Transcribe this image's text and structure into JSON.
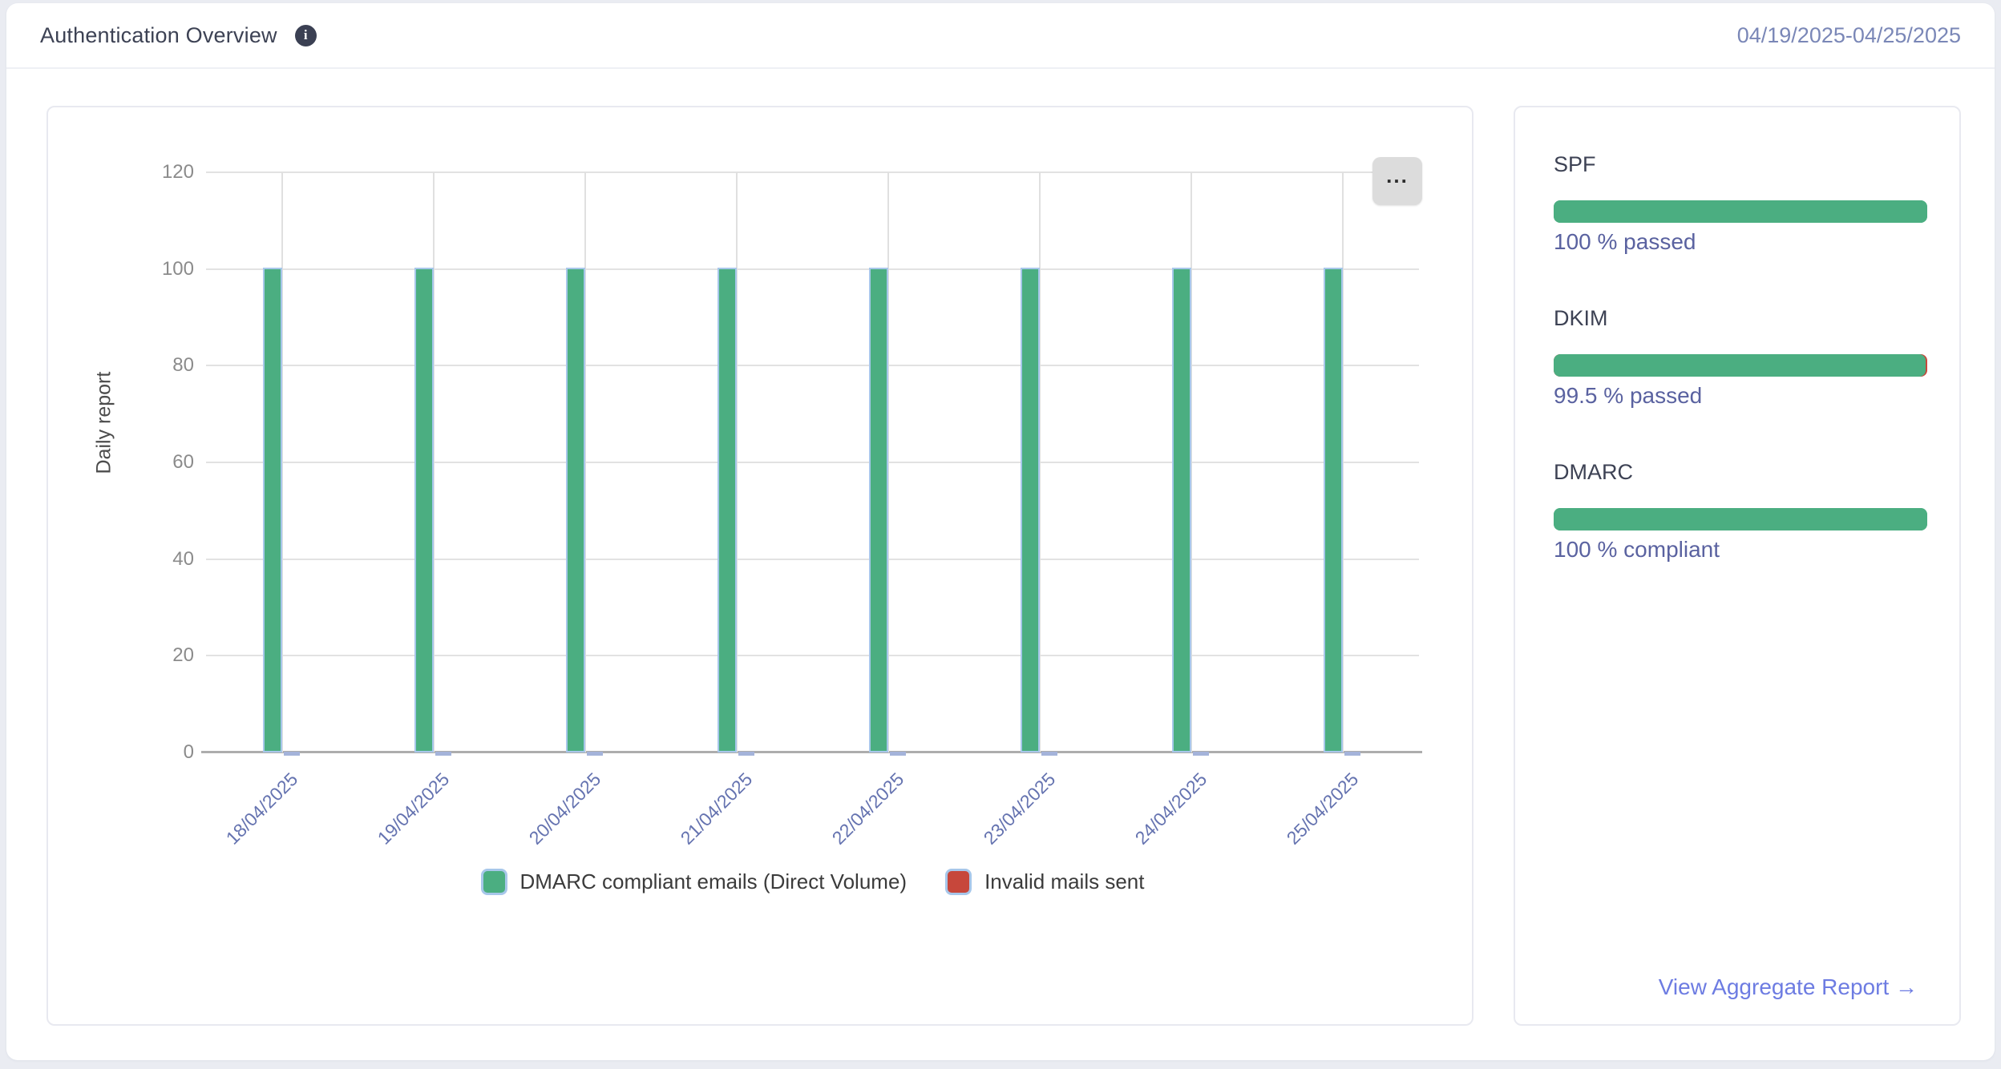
{
  "header": {
    "title": "Authentication Overview",
    "info_icon": "i",
    "date_range": "04/19/2025-04/25/2025"
  },
  "chart_card": {
    "menu_button_label": "..."
  },
  "chart_data": {
    "type": "bar",
    "title": "",
    "xlabel": "",
    "ylabel": "Daily report",
    "ylim": [
      0,
      120
    ],
    "yticks": [
      0,
      20,
      40,
      60,
      80,
      100,
      120
    ],
    "grid": true,
    "legend_position": "bottom",
    "categories": [
      "18/04/2025",
      "19/04/2025",
      "20/04/2025",
      "21/04/2025",
      "22/04/2025",
      "23/04/2025",
      "24/04/2025",
      "25/04/2025"
    ],
    "series": [
      {
        "name": "DMARC compliant emails (Direct Volume)",
        "color": "#4bae81",
        "values": [
          100,
          100,
          100,
          100,
          100,
          100,
          100,
          100
        ]
      },
      {
        "name": "Invalid mails sent",
        "color": "#c7473b",
        "values": [
          0,
          0,
          0,
          0,
          0,
          0,
          0,
          0
        ]
      }
    ],
    "bar_border_color": "#a7c7ea",
    "zero_bar_color": "#a4b3da"
  },
  "sidebar": {
    "sections": [
      {
        "label": "SPF",
        "percent": 100,
        "status_text": "100 % passed"
      },
      {
        "label": "DKIM",
        "percent": 99.5,
        "status_text": "99.5 % passed"
      },
      {
        "label": "DMARC",
        "percent": 100,
        "status_text": "100 % compliant"
      }
    ],
    "pass_color": "#4bae81",
    "fail_color": "#c7473b",
    "link_label": "View Aggregate Report →"
  },
  "colors": {
    "page_background": "#eaecf2",
    "card_background": "#ffffff",
    "accent_green": "#4bae81",
    "accent_red": "#c7473b",
    "bar_border_blue": "#a7c7ea",
    "link_blue": "#6d7ce2",
    "date_text": "#7a87b7",
    "status_text": "#5a62a0"
  }
}
